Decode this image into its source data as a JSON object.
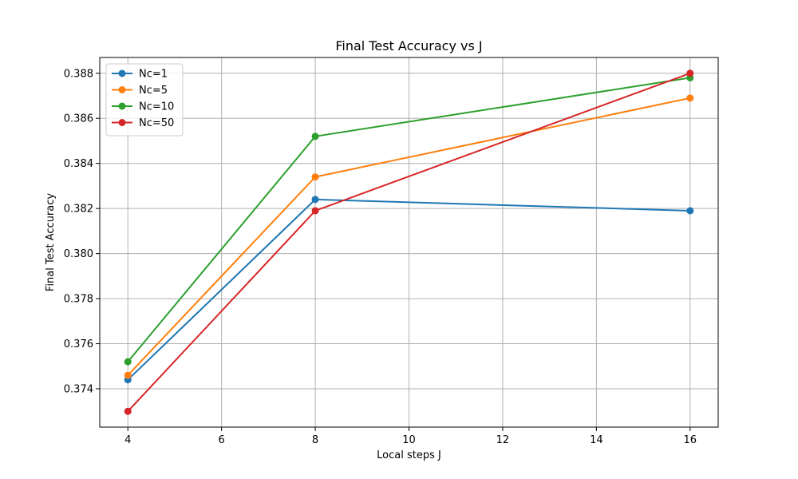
{
  "chart_data": {
    "type": "line",
    "title": "Final Test Accuracy vs J",
    "xlabel": "Local steps J",
    "ylabel": "Final Test Accuracy",
    "x": [
      4,
      8,
      16
    ],
    "xlim": [
      3.4,
      16.6
    ],
    "ylim": [
      0.3723,
      0.3887
    ],
    "xticks": [
      4,
      6,
      8,
      10,
      12,
      14,
      16
    ],
    "xtick_labels": [
      "4",
      "6",
      "8",
      "10",
      "12",
      "14",
      "16"
    ],
    "yticks": [
      0.374,
      0.376,
      0.378,
      0.38,
      0.382,
      0.384,
      0.386,
      0.388
    ],
    "ytick_labels": [
      "0.374",
      "0.376",
      "0.378",
      "0.380",
      "0.382",
      "0.384",
      "0.386",
      "0.388"
    ],
    "grid": true,
    "legend_position": "top-left",
    "marker": "circle",
    "series": [
      {
        "name": "Nc=1",
        "color": "#1f77b4",
        "values": [
          0.3744,
          0.3824,
          0.3819
        ]
      },
      {
        "name": "Nc=5",
        "color": "#ff7f0e",
        "values": [
          0.3746,
          0.3834,
          0.3869
        ]
      },
      {
        "name": "Nc=10",
        "color": "#2ca02c",
        "values": [
          0.3752,
          0.3852,
          0.3878
        ]
      },
      {
        "name": "Nc=50",
        "color": "#d62728",
        "values": [
          0.373,
          0.3819,
          0.388
        ]
      }
    ]
  }
}
